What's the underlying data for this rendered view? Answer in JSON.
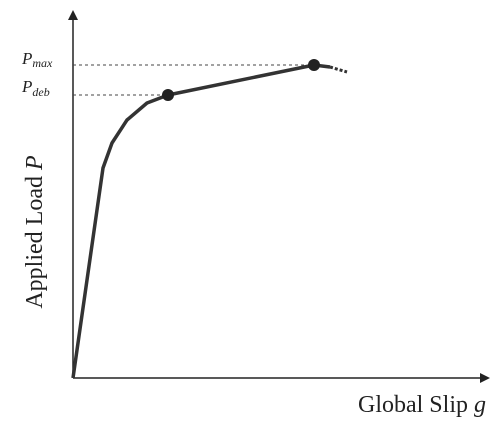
{
  "y_axis": {
    "label": "Applied Load",
    "symbol": "P"
  },
  "x_axis": {
    "label": "Global Slip",
    "symbol": "g"
  },
  "annotations": [
    {
      "symbol": "P",
      "subscript": "max"
    },
    {
      "symbol": "P",
      "subscript": "deb"
    }
  ]
}
